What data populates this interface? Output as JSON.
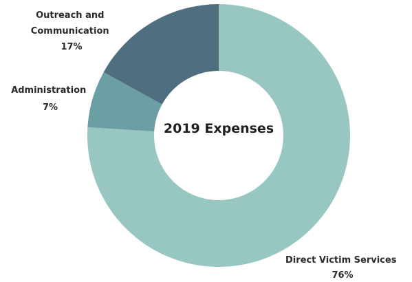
{
  "chart_data": {
    "type": "pie",
    "donut": true,
    "title": "2019 Expenses",
    "slices": [
      {
        "name": "Direct Victim Services",
        "value": 76,
        "label": "76%",
        "color": "#98c6c0"
      },
      {
        "name": "Administration",
        "value": 7,
        "label": "7%",
        "color": "#6b9fa3"
      },
      {
        "name": "Outreach and Communication",
        "value": 17,
        "label": "17%",
        "color": "#4f6f80"
      }
    ],
    "label_lines": {
      "direct_victim_services": [
        "Direct Victim Services",
        "76%"
      ],
      "administration": [
        "Administration",
        "7%"
      ],
      "outreach": [
        "Outreach and",
        "Communication",
        "17%"
      ]
    },
    "grid": false,
    "legend": "none"
  }
}
